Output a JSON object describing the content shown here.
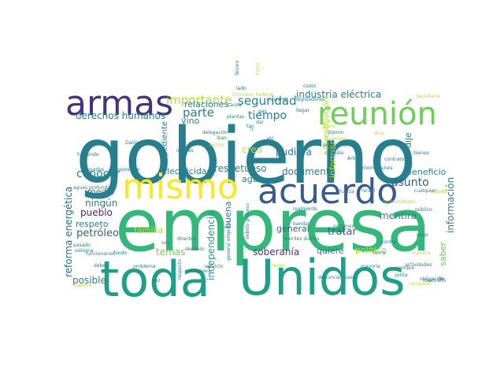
{
  "palette": {
    "dark_purple": "#46327e",
    "purple": "#482475",
    "navy": "#365c8d",
    "blue": "#31688e",
    "teal": "#277f8e",
    "teal2": "#1f9e89",
    "green": "#35b779",
    "lightgreen": "#6ece58",
    "lime": "#b5de2b",
    "yellow": "#fde725"
  },
  "words": [
    "gobierno",
    "empresa",
    "Unidos",
    "toda",
    "acuerdo",
    "armas",
    "mismo",
    "reunión",
    "seguridad",
    "importante",
    "parte",
    "tiempo",
    "derechos humanos",
    "industria eléctrica",
    "relaciones",
    "conocer",
    "respetuoso",
    "documento",
    "Electricidad",
    "temas",
    "pueblo",
    "petróleo",
    "reforma energética",
    "respeto",
    "ningún",
    "medio",
    "posible",
    "asunto",
    "general",
    "soberanía",
    "tratar",
    "quiere",
    "mentira",
    "información",
    "beneficio",
    "saber",
    "buena",
    "familia",
    "independencia",
    "expediente",
    "vino",
    "creo",
    "pudiera",
    "informar",
    "investigación",
    "dije",
    "agua",
    "política",
    "Comisión Federal",
    "Secretaría",
    "delegación",
    "iban",
    "Dalila",
    "haciendo",
    "iguales",
    "abogados",
    "responsable",
    "dijeron",
    "ingeniero",
    "producción",
    "subsidio",
    "Arturo",
    "próximo lunes",
    "Israel",
    "fuerza",
    "cualquier",
    "aguas profundas",
    "pasado",
    "sistema",
    "funcionarios",
    "fondo",
    "problema",
    "debe",
    "parece",
    "campaña",
    "obligación",
    "consumidores",
    "nombre",
    "actividades",
    "junta",
    "mexicano",
    "público",
    "naciones",
    "tierra",
    "manera",
    "realmente",
    "barriles diarios",
    "servicio",
    "extranjera",
    "decisión",
    "directos",
    "respecto",
    "legisladores",
    "bandas",
    "debido proceso",
    "general empresa",
    "plantas",
    "costo",
    "causa",
    "dar",
    "tan",
    "dice",
    "fuera",
    "ir",
    "gas",
    "llegar",
    "hecho",
    "lado",
    "Tesoro",
    "torno",
    "nacional",
    "ahí",
    "contratos",
    "bienes",
    "estado",
    "pago",
    "leyes",
    "denuncia",
    "base",
    "mayoría",
    "contra",
    "fin",
    "vez",
    "voy",
    "hablar",
    "consejo"
  ]
}
